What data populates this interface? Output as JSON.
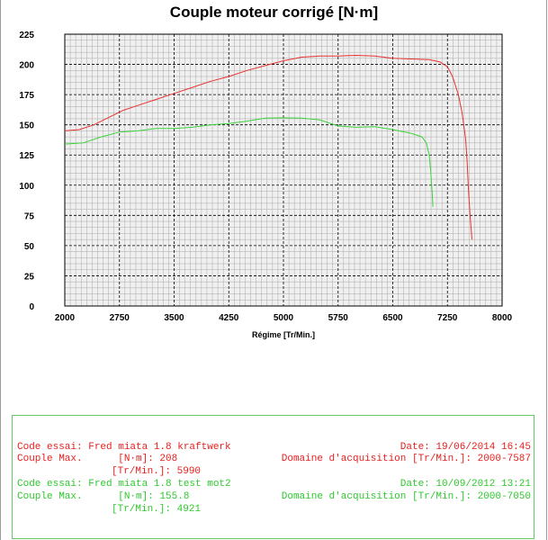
{
  "chart_data": {
    "type": "line",
    "title": "Couple moteur corrigé [N·m]",
    "xlabel": "Régime [Tr/Min.]",
    "ylabel": "",
    "xlim": [
      2000,
      8000
    ],
    "ylim": [
      0,
      225
    ],
    "x_ticks": [
      "2000",
      "2750",
      "3500",
      "4250",
      "5000",
      "5750",
      "6500",
      "7250",
      "8000"
    ],
    "y_ticks": [
      "0",
      "25",
      "50",
      "75",
      "100",
      "125",
      "150",
      "175",
      "200",
      "225"
    ],
    "grid": true,
    "series": [
      {
        "color": "#e83232",
        "points": [
          [
            2000,
            145
          ],
          [
            2200,
            146
          ],
          [
            2400,
            150
          ],
          [
            2600,
            156
          ],
          [
            2800,
            162
          ],
          [
            3000,
            166
          ],
          [
            3250,
            171
          ],
          [
            3500,
            176
          ],
          [
            3750,
            181
          ],
          [
            4000,
            186
          ],
          [
            4250,
            190
          ],
          [
            4500,
            195
          ],
          [
            4750,
            199
          ],
          [
            5000,
            203
          ],
          [
            5250,
            206
          ],
          [
            5500,
            207
          ],
          [
            5750,
            207
          ],
          [
            6000,
            207.5
          ],
          [
            6250,
            207
          ],
          [
            6500,
            205
          ],
          [
            6750,
            204.5
          ],
          [
            7000,
            204
          ],
          [
            7150,
            202
          ],
          [
            7250,
            198
          ],
          [
            7320,
            190
          ],
          [
            7400,
            175
          ],
          [
            7450,
            160
          ],
          [
            7500,
            138
          ],
          [
            7520,
            120
          ],
          [
            7540,
            95
          ],
          [
            7560,
            75
          ],
          [
            7587,
            55
          ]
        ]
      },
      {
        "color": "#3cd23c",
        "points": [
          [
            2000,
            134
          ],
          [
            2250,
            135
          ],
          [
            2500,
            140
          ],
          [
            2750,
            144
          ],
          [
            3000,
            145
          ],
          [
            3250,
            147
          ],
          [
            3500,
            147
          ],
          [
            3750,
            148
          ],
          [
            4000,
            150
          ],
          [
            4250,
            151
          ],
          [
            4500,
            153
          ],
          [
            4750,
            155.5
          ],
          [
            5000,
            155.8
          ],
          [
            5250,
            155.5
          ],
          [
            5500,
            154
          ],
          [
            5750,
            149
          ],
          [
            6000,
            148
          ],
          [
            6250,
            148.5
          ],
          [
            6500,
            146
          ],
          [
            6750,
            143
          ],
          [
            6900,
            140
          ],
          [
            6960,
            135
          ],
          [
            7000,
            125
          ],
          [
            7020,
            112
          ],
          [
            7040,
            95
          ],
          [
            7050,
            82
          ]
        ]
      }
    ]
  },
  "legend": {
    "run1": {
      "color": "#e81e1e",
      "line1_left": "Code essai: Fred miata 1.8 kraftwerk",
      "line1_right": "Date: 19/06/2014 16:45",
      "line2_left": "Couple Max.      [N·m]: 208",
      "line2_right": "Domaine d'acquisition [Tr/Min.]: 2000-7587",
      "line3": "[Tr/Min.]: 5990"
    },
    "run2": {
      "color": "#2fc82f",
      "line1_left": "Code essai: Fred miata 1.8 test mot2",
      "line1_right": "Date: 10/09/2012 13:21",
      "line2_left": "Couple Max.      [N·m]: 155.8",
      "line2_right": "Domaine d'acquisition [Tr/Min.]: 2000-7050",
      "line3": "[Tr/Min.]: 4921"
    }
  }
}
